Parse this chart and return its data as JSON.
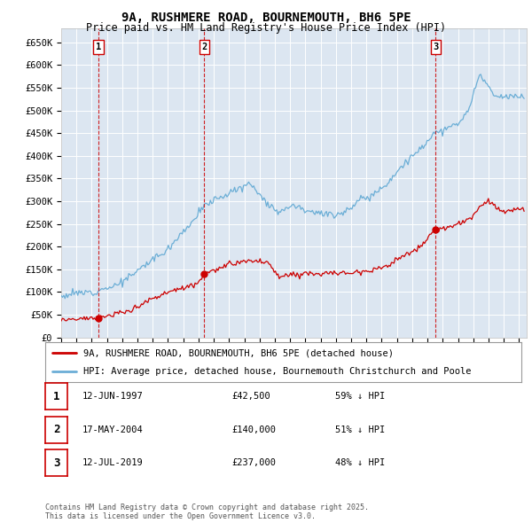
{
  "title": "9A, RUSHMERE ROAD, BOURNEMOUTH, BH6 5PE",
  "subtitle": "Price paid vs. HM Land Registry's House Price Index (HPI)",
  "plot_bg_color": "#dce6f1",
  "ylim": [
    0,
    680000
  ],
  "yticks": [
    0,
    50000,
    100000,
    150000,
    200000,
    250000,
    300000,
    350000,
    400000,
    450000,
    500000,
    550000,
    600000,
    650000
  ],
  "ytick_labels": [
    "£0",
    "£50K",
    "£100K",
    "£150K",
    "£200K",
    "£250K",
    "£300K",
    "£350K",
    "£400K",
    "£450K",
    "£500K",
    "£550K",
    "£600K",
    "£650K"
  ],
  "xlim_start": 1995.0,
  "xlim_end": 2025.5,
  "hpi_color": "#6baed6",
  "price_color": "#cc0000",
  "grid_color": "#ffffff",
  "sale_dates": [
    1997.45,
    2004.37,
    2019.53
  ],
  "sale_prices": [
    42500,
    140000,
    237000
  ],
  "sale_labels": [
    "1",
    "2",
    "3"
  ],
  "sale_label_dates": [
    "12-JUN-1997",
    "17-MAY-2004",
    "12-JUL-2019"
  ],
  "sale_label_prices": [
    "£42,500",
    "£140,000",
    "£237,000"
  ],
  "sale_label_pcts": [
    "59% ↓ HPI",
    "51% ↓ HPI",
    "48% ↓ HPI"
  ],
  "legend_line1": "9A, RUSHMERE ROAD, BOURNEMOUTH, BH6 5PE (detached house)",
  "legend_line2": "HPI: Average price, detached house, Bournemouth Christchurch and Poole",
  "footer": "Contains HM Land Registry data © Crown copyright and database right 2025.\nThis data is licensed under the Open Government Licence v3.0."
}
